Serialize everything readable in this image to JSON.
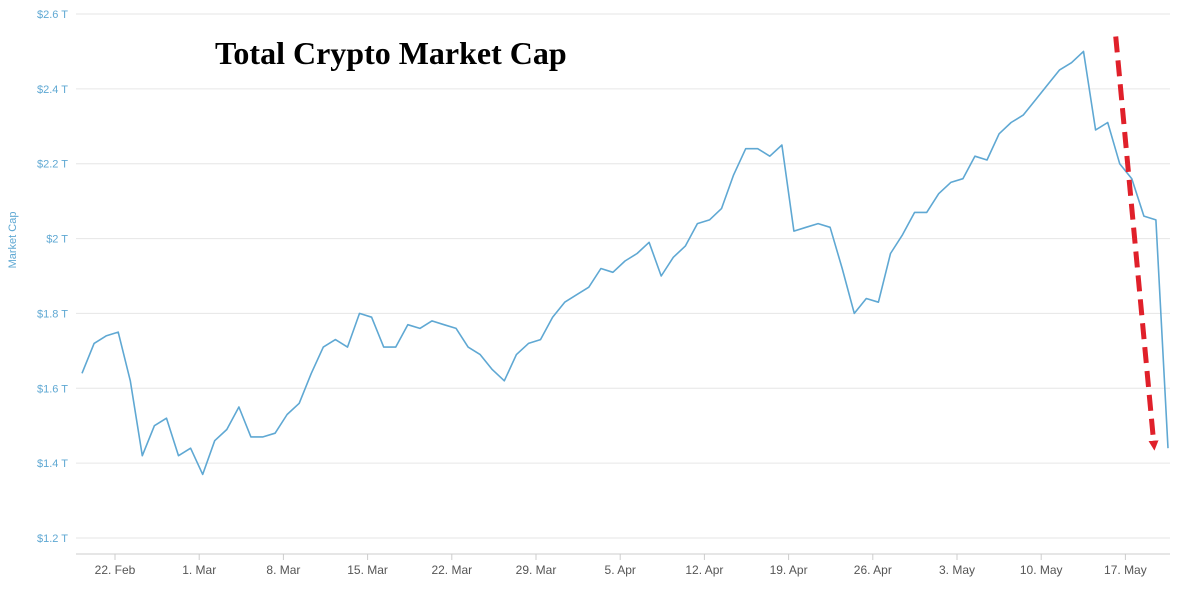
{
  "chart_data": {
    "type": "line",
    "title": "Total Crypto Market Cap",
    "xlabel": "",
    "ylabel": "Market Cap",
    "ylim": [
      1.2,
      2.6
    ],
    "y_ticks": [
      1.2,
      1.4,
      1.6,
      1.8,
      2.0,
      2.2,
      2.4,
      2.6
    ],
    "y_tick_labels": [
      "$1.2 T",
      "$1.4 T",
      "$1.6 T",
      "$1.8 T",
      "$2 T",
      "$2.2 T",
      "$2.4 T",
      "$2.6 T"
    ],
    "x_tick_labels": [
      "22. Feb",
      "1. Mar",
      "8. Mar",
      "15. Mar",
      "22. Mar",
      "29. Mar",
      "5. Apr",
      "12. Apr",
      "19. Apr",
      "26. Apr",
      "3. May",
      "10. May",
      "17. May"
    ],
    "x_range": [
      "2021-02-18",
      "2021-05-19"
    ],
    "grid": true,
    "units": "$ T",
    "series": [
      {
        "color": "#5fa8d3",
        "points": [
          [
            "2021-02-18",
            1.64
          ],
          [
            "2021-02-19",
            1.72
          ],
          [
            "2021-02-20",
            1.74
          ],
          [
            "2021-02-21",
            1.75
          ],
          [
            "2021-02-22",
            1.62
          ],
          [
            "2021-02-23",
            1.42
          ],
          [
            "2021-02-24",
            1.5
          ],
          [
            "2021-02-25",
            1.52
          ],
          [
            "2021-02-26",
            1.42
          ],
          [
            "2021-02-27",
            1.44
          ],
          [
            "2021-02-28",
            1.37
          ],
          [
            "2021-03-01",
            1.46
          ],
          [
            "2021-03-02",
            1.49
          ],
          [
            "2021-03-03",
            1.55
          ],
          [
            "2021-03-04",
            1.47
          ],
          [
            "2021-03-05",
            1.47
          ],
          [
            "2021-03-06",
            1.48
          ],
          [
            "2021-03-07",
            1.53
          ],
          [
            "2021-03-08",
            1.56
          ],
          [
            "2021-03-09",
            1.64
          ],
          [
            "2021-03-10",
            1.71
          ],
          [
            "2021-03-11",
            1.73
          ],
          [
            "2021-03-12",
            1.71
          ],
          [
            "2021-03-13",
            1.8
          ],
          [
            "2021-03-14",
            1.79
          ],
          [
            "2021-03-15",
            1.71
          ],
          [
            "2021-03-16",
            1.71
          ],
          [
            "2021-03-17",
            1.77
          ],
          [
            "2021-03-18",
            1.76
          ],
          [
            "2021-03-19",
            1.78
          ],
          [
            "2021-03-20",
            1.77
          ],
          [
            "2021-03-21",
            1.76
          ],
          [
            "2021-03-22",
            1.71
          ],
          [
            "2021-03-23",
            1.69
          ],
          [
            "2021-03-24",
            1.65
          ],
          [
            "2021-03-25",
            1.62
          ],
          [
            "2021-03-26",
            1.69
          ],
          [
            "2021-03-27",
            1.72
          ],
          [
            "2021-03-28",
            1.73
          ],
          [
            "2021-03-29",
            1.79
          ],
          [
            "2021-03-30",
            1.83
          ],
          [
            "2021-03-31",
            1.85
          ],
          [
            "2021-04-01",
            1.87
          ],
          [
            "2021-04-02",
            1.92
          ],
          [
            "2021-04-03",
            1.91
          ],
          [
            "2021-04-04",
            1.94
          ],
          [
            "2021-04-05",
            1.96
          ],
          [
            "2021-04-06",
            1.99
          ],
          [
            "2021-04-07",
            1.9
          ],
          [
            "2021-04-08",
            1.95
          ],
          [
            "2021-04-09",
            1.98
          ],
          [
            "2021-04-10",
            2.04
          ],
          [
            "2021-04-11",
            2.05
          ],
          [
            "2021-04-12",
            2.08
          ],
          [
            "2021-04-13",
            2.17
          ],
          [
            "2021-04-14",
            2.24
          ],
          [
            "2021-04-15",
            2.24
          ],
          [
            "2021-04-16",
            2.22
          ],
          [
            "2021-04-17",
            2.25
          ],
          [
            "2021-04-18",
            2.02
          ],
          [
            "2021-04-19",
            2.03
          ],
          [
            "2021-04-20",
            2.04
          ],
          [
            "2021-04-21",
            2.03
          ],
          [
            "2021-04-22",
            1.92
          ],
          [
            "2021-04-23",
            1.8
          ],
          [
            "2021-04-24",
            1.84
          ],
          [
            "2021-04-25",
            1.83
          ],
          [
            "2021-04-26",
            1.96
          ],
          [
            "2021-04-27",
            2.01
          ],
          [
            "2021-04-28",
            2.07
          ],
          [
            "2021-04-29",
            2.07
          ],
          [
            "2021-04-30",
            2.12
          ],
          [
            "2021-05-01",
            2.15
          ],
          [
            "2021-05-02",
            2.16
          ],
          [
            "2021-05-03",
            2.22
          ],
          [
            "2021-05-04",
            2.21
          ],
          [
            "2021-05-05",
            2.28
          ],
          [
            "2021-05-06",
            2.31
          ],
          [
            "2021-05-07",
            2.33
          ],
          [
            "2021-05-08",
            2.37
          ],
          [
            "2021-05-09",
            2.41
          ],
          [
            "2021-05-10",
            2.45
          ],
          [
            "2021-05-11",
            2.47
          ],
          [
            "2021-05-12",
            2.5
          ],
          [
            "2021-05-13",
            2.29
          ],
          [
            "2021-05-14",
            2.31
          ],
          [
            "2021-05-15",
            2.2
          ],
          [
            "2021-05-16",
            2.16
          ],
          [
            "2021-05-17",
            2.06
          ],
          [
            "2021-05-18",
            2.05
          ],
          [
            "2021-05-19",
            1.44
          ]
        ]
      }
    ],
    "annotations": [
      {
        "type": "arrow",
        "style": "dashed",
        "color": "#e0202a",
        "from": [
          "2021-05-15",
          2.54
        ],
        "to": [
          "2021-05-19",
          1.42
        ]
      }
    ]
  }
}
